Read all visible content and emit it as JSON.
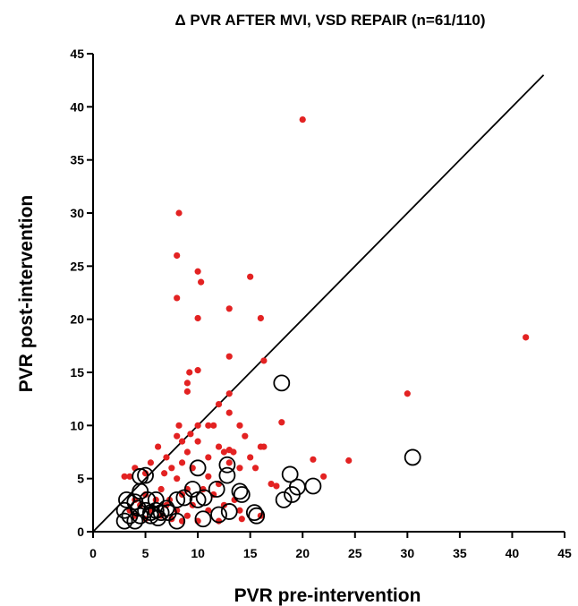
{
  "chart_data": {
    "type": "scatter",
    "title": "Δ PVR AFTER MVI, VSD REPAIR (n=61/110)",
    "xlabel": "PVR pre-intervention",
    "ylabel": "PVR post-intervention",
    "xlim": [
      0,
      45
    ],
    "ylim": [
      0,
      45
    ],
    "x_ticks": [
      "0",
      "5",
      "10",
      "15",
      "20",
      "25",
      "30",
      "35",
      "40",
      "45"
    ],
    "y_ticks": [
      "0",
      "5",
      "10",
      "15",
      "20",
      "25",
      "30",
      "35",
      "40",
      "45"
    ],
    "grid": false,
    "legend": "none",
    "reference_line": {
      "type": "identity",
      "x": [
        0,
        43
      ],
      "y": [
        0,
        43
      ],
      "color": "#000000"
    },
    "series": [
      {
        "marker": "filled-circle",
        "color": "#e32222",
        "points": [
          [
            20.0,
            38.8
          ],
          [
            41.3,
            18.3
          ],
          [
            30.0,
            13.0
          ],
          [
            8.2,
            30.0
          ],
          [
            8.0,
            26.0
          ],
          [
            10.0,
            24.5
          ],
          [
            15.0,
            24.0
          ],
          [
            10.3,
            23.5
          ],
          [
            8.0,
            22.0
          ],
          [
            13.0,
            21.0
          ],
          [
            10.0,
            20.1
          ],
          [
            16.0,
            20.1
          ],
          [
            13.0,
            16.5
          ],
          [
            16.3,
            16.1
          ],
          [
            10.0,
            15.2
          ],
          [
            9.2,
            15.0
          ],
          [
            9.0,
            14.0
          ],
          [
            9.0,
            13.2
          ],
          [
            13.0,
            13.0
          ],
          [
            12.0,
            12.0
          ],
          [
            13.0,
            11.2
          ],
          [
            8.2,
            10.0
          ],
          [
            10.0,
            10.0
          ],
          [
            11.0,
            10.0
          ],
          [
            11.5,
            10.0
          ],
          [
            14.0,
            10.0
          ],
          [
            18.0,
            10.3
          ],
          [
            9.3,
            9.2
          ],
          [
            8.0,
            9.0
          ],
          [
            14.5,
            9.0
          ],
          [
            8.5,
            8.5
          ],
          [
            10.0,
            8.5
          ],
          [
            6.2,
            8.0
          ],
          [
            12.0,
            8.0
          ],
          [
            16.0,
            8.0
          ],
          [
            16.3,
            8.0
          ],
          [
            13.0,
            7.7
          ],
          [
            12.5,
            7.5
          ],
          [
            13.4,
            7.5
          ],
          [
            9.0,
            7.5
          ],
          [
            7.0,
            7.0
          ],
          [
            11.0,
            7.0
          ],
          [
            15.0,
            7.0
          ],
          [
            21.0,
            6.8
          ],
          [
            24.4,
            6.7
          ],
          [
            5.5,
            6.5
          ],
          [
            8.5,
            6.5
          ],
          [
            13.0,
            6.5
          ],
          [
            7.5,
            6.0
          ],
          [
            9.5,
            6.0
          ],
          [
            14.0,
            6.0
          ],
          [
            15.5,
            6.0
          ],
          [
            4.0,
            6.0
          ],
          [
            5.0,
            5.5
          ],
          [
            6.8,
            5.5
          ],
          [
            3.0,
            5.2
          ],
          [
            3.5,
            5.2
          ],
          [
            11.0,
            5.2
          ],
          [
            22.0,
            5.2
          ],
          [
            8.0,
            5.0
          ],
          [
            12.0,
            4.5
          ],
          [
            17.0,
            4.5
          ],
          [
            17.5,
            4.3
          ],
          [
            6.5,
            4.0
          ],
          [
            9.0,
            4.0
          ],
          [
            10.5,
            4.0
          ],
          [
            5.0,
            3.5
          ],
          [
            8.5,
            3.5
          ],
          [
            11.5,
            3.5
          ],
          [
            4.0,
            3.0
          ],
          [
            6.0,
            3.0
          ],
          [
            7.3,
            3.0
          ],
          [
            13.5,
            3.0
          ],
          [
            4.5,
            2.5
          ],
          [
            7.0,
            2.5
          ],
          [
            9.5,
            2.5
          ],
          [
            12.5,
            2.5
          ],
          [
            3.5,
            2.0
          ],
          [
            5.5,
            2.0
          ],
          [
            8.0,
            2.0
          ],
          [
            11.0,
            2.0
          ],
          [
            14.0,
            2.0
          ],
          [
            4.0,
            1.5
          ],
          [
            6.5,
            1.5
          ],
          [
            9.0,
            1.5
          ],
          [
            16.0,
            1.5
          ],
          [
            5.0,
            1.2
          ],
          [
            7.5,
            1.2
          ],
          [
            10.0,
            1.0
          ],
          [
            14.2,
            1.2
          ],
          [
            8.5,
            1.0
          ],
          [
            12.0,
            1.0
          ]
        ]
      },
      {
        "marker": "open-circle",
        "color": "#000000",
        "points": [
          [
            18.0,
            14.0
          ],
          [
            30.5,
            7.0
          ],
          [
            10.0,
            6.0
          ],
          [
            12.8,
            6.3
          ],
          [
            4.5,
            5.2
          ],
          [
            5.0,
            5.3
          ],
          [
            18.8,
            5.4
          ],
          [
            12.8,
            5.3
          ],
          [
            9.5,
            4.0
          ],
          [
            11.8,
            4.0
          ],
          [
            14.0,
            3.8
          ],
          [
            14.2,
            3.5
          ],
          [
            19.5,
            4.2
          ],
          [
            21.0,
            4.3
          ],
          [
            19.0,
            3.5
          ],
          [
            18.2,
            3.0
          ],
          [
            4.5,
            3.8
          ],
          [
            5.2,
            3.0
          ],
          [
            4.0,
            2.8
          ],
          [
            3.2,
            3.0
          ],
          [
            6.0,
            3.0
          ],
          [
            8.0,
            3.0
          ],
          [
            8.7,
            3.2
          ],
          [
            10.0,
            3.0
          ],
          [
            10.6,
            3.2
          ],
          [
            4.3,
            2.2
          ],
          [
            5.0,
            2.0
          ],
          [
            6.0,
            2.0
          ],
          [
            7.0,
            2.2
          ],
          [
            3.0,
            2.0
          ],
          [
            5.5,
            1.8
          ],
          [
            6.5,
            1.8
          ],
          [
            7.2,
            1.8
          ],
          [
            3.5,
            1.5
          ],
          [
            4.5,
            1.5
          ],
          [
            5.5,
            1.5
          ],
          [
            6.2,
            1.3
          ],
          [
            13.0,
            1.9
          ],
          [
            12.0,
            1.6
          ],
          [
            15.4,
            1.8
          ],
          [
            15.6,
            1.5
          ],
          [
            3.0,
            1.0
          ],
          [
            4.0,
            1.0
          ],
          [
            8.0,
            1.0
          ],
          [
            10.5,
            1.2
          ]
        ]
      }
    ]
  }
}
